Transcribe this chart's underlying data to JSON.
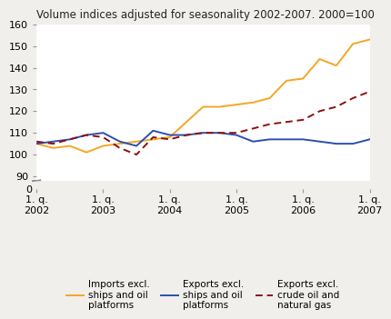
{
  "title": "Volume indices adjusted for seasonality 2002-2007. 2000=100",
  "xlim": [
    0,
    20
  ],
  "ylim_main": [
    88,
    160
  ],
  "ylim_zero": [
    0,
    2
  ],
  "yticks": [
    90,
    100,
    110,
    120,
    130,
    140,
    150,
    160
  ],
  "xtick_positions": [
    0,
    4,
    8,
    12,
    16,
    20
  ],
  "xtick_labels": [
    "1. q.\n2002",
    "1. q.\n2003",
    "1. q.\n2004",
    "1. q.\n2005",
    "1. q.\n2006",
    "1. q.\n2007"
  ],
  "imports": [
    105,
    103,
    104,
    101,
    104,
    105,
    106,
    107,
    108,
    115,
    122,
    122,
    123,
    124,
    126,
    134,
    135,
    144,
    141,
    151,
    153
  ],
  "exports": [
    105,
    106,
    107,
    109,
    110,
    106,
    104,
    111,
    109,
    109,
    110,
    110,
    109,
    106,
    107,
    107,
    107,
    106,
    105,
    105,
    107
  ],
  "exports_excl": [
    106,
    105,
    107,
    109,
    108,
    103,
    100,
    108,
    107,
    109,
    110,
    110,
    110,
    112,
    114,
    115,
    116,
    120,
    122,
    126,
    129
  ],
  "imports_color": "#f5a623",
  "exports_color": "#2b4fad",
  "exports_excl_color": "#8b1010",
  "background_color": "#f0efeb",
  "plot_bg_color": "#ffffff",
  "grid_color": "#ffffff",
  "legend_labels": [
    "Imports excl.\nships and oil\nplatforms",
    "Exports excl.\nships and oil\nplatforms",
    "Exports excl.\ncrude oil and\nnatural gas"
  ],
  "title_fontsize": 8.5,
  "tick_fontsize": 8,
  "legend_fontsize": 7.5
}
